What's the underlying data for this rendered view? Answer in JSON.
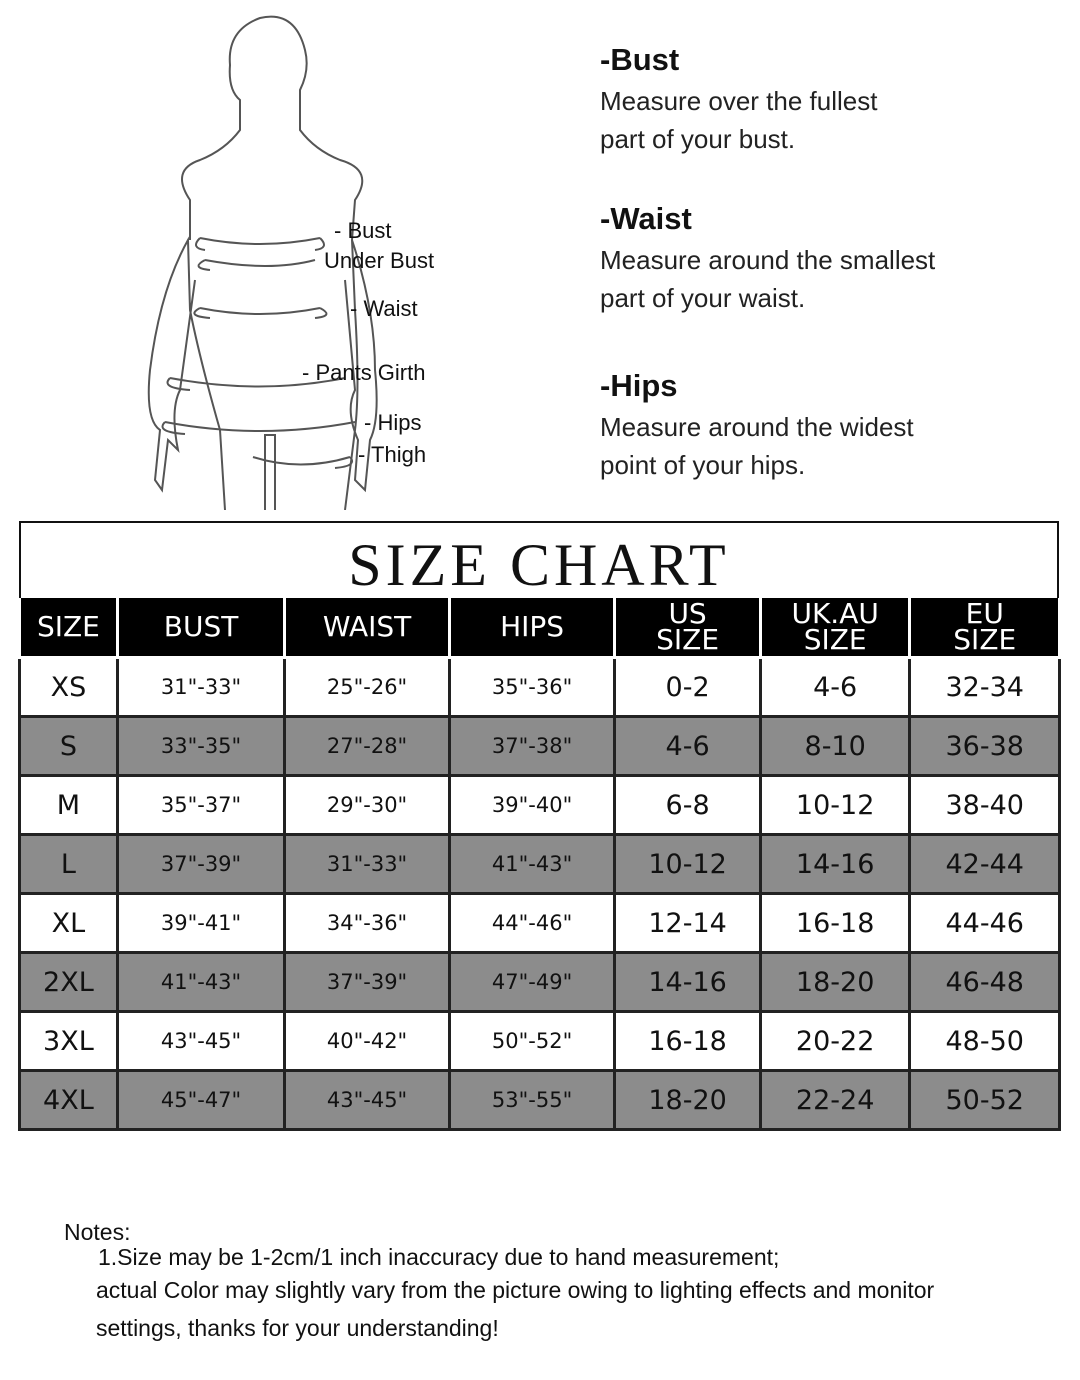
{
  "figure_labels": [
    "- Bust",
    "Under Bust",
    "- Waist",
    "- Pants Girth",
    "- Hips",
    "- Thigh"
  ],
  "measurements": [
    {
      "title": "-Bust",
      "lines": [
        "Measure over the fullest",
        "part of your bust."
      ]
    },
    {
      "title": "-Waist",
      "lines": [
        "Measure around the smallest",
        "part of your waist."
      ]
    },
    {
      "title": "-Hips",
      "lines": [
        "Measure around the widest",
        "point of your hips."
      ]
    }
  ],
  "chart_title": "SIZE CHART",
  "table": {
    "headers": [
      "SIZE",
      "BUST",
      "WAIST",
      "HIPS",
      "US SIZE",
      "UK.AU SIZE",
      "EU SIZE"
    ],
    "rows": [
      [
        "XS",
        "31\"-33\"",
        "25\"-26\"",
        "35\"-36\"",
        "0-2",
        "4-6",
        "32-34"
      ],
      [
        "S",
        "33\"-35\"",
        "27\"-28\"",
        "37\"-38\"",
        "4-6",
        "8-10",
        "36-38"
      ],
      [
        "M",
        "35\"-37\"",
        "29\"-30\"",
        "39\"-40\"",
        "6-8",
        "10-12",
        "38-40"
      ],
      [
        "L",
        "37\"-39\"",
        "31\"-33\"",
        "41\"-43\"",
        "10-12",
        "14-16",
        "42-44"
      ],
      [
        "XL",
        "39\"-41\"",
        "34\"-36\"",
        "44\"-46\"",
        "12-14",
        "16-18",
        "44-46"
      ],
      [
        "2XL",
        "41\"-43\"",
        "37\"-39\"",
        "47\"-49\"",
        "14-16",
        "18-20",
        "46-48"
      ],
      [
        "3XL",
        "43\"-45\"",
        "40\"-42\"",
        "50\"-52\"",
        "16-18",
        "20-22",
        "48-50"
      ],
      [
        "4XL",
        "45\"-47\"",
        "43\"-45\"",
        "53\"-55\"",
        "18-20",
        "22-24",
        "50-52"
      ]
    ],
    "row_colors": {
      "odd": "#ffffff",
      "even": "#8c8c8c",
      "header": "#000000"
    }
  },
  "notes": {
    "heading": "Notes:",
    "lines": [
      "1.Size may be 1-2cm/1 inch inaccuracy due to hand measurement;",
      "actual Color may slightly vary from the picture owing to lighting effects and monitor",
      "settings, thanks for your understanding!"
    ]
  }
}
